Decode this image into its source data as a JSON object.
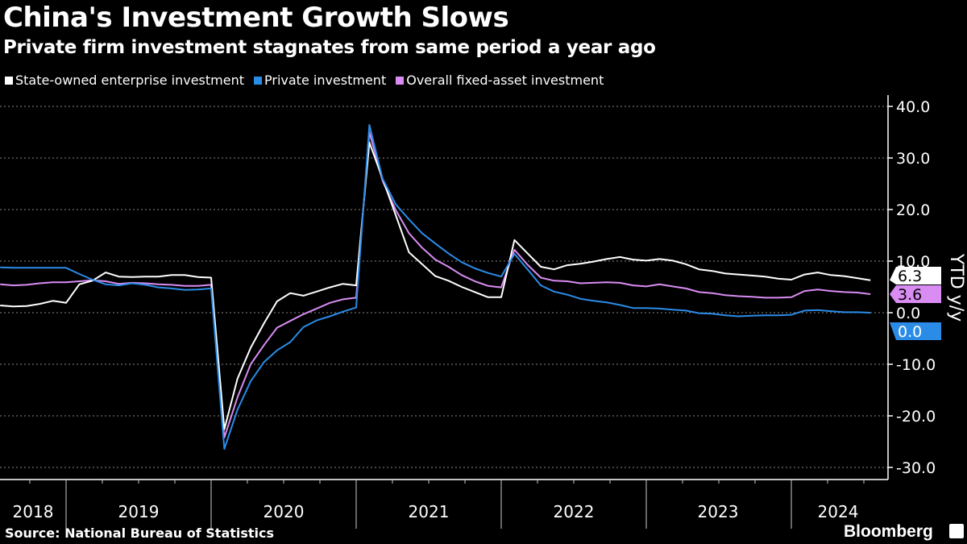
{
  "header": {
    "title": "China's Investment Growth Slows",
    "subtitle": "Private firm investment stagnates from same period a year ago"
  },
  "footer": {
    "source": "Source: National Bureau of Statistics",
    "brand": "Bloomberg"
  },
  "chart_data": {
    "type": "line",
    "title": "China's Investment Growth Slows",
    "subtitle": "Private firm investment stagnates from same period a year ago",
    "ylabel": "YTD y/y",
    "ylim": [
      -30,
      40
    ],
    "yticks": [
      "40.0",
      "30.0",
      "20.0",
      "10.0",
      "0.0",
      "-10.0",
      "-20.0",
      "-30.0"
    ],
    "ytick_values": [
      40,
      30,
      20,
      10,
      0,
      -10,
      -20,
      -30
    ],
    "xticks": [
      "2018",
      "2019",
      "2020",
      "2021",
      "2022",
      "2023",
      "2024"
    ],
    "grid": true,
    "y_axis_side": "right",
    "legend_position": "top-left",
    "x": [
      "2018-07",
      "2018-08",
      "2018-09",
      "2018-10",
      "2018-11",
      "2018-12",
      "2019-02",
      "2019-03",
      "2019-04",
      "2019-05",
      "2019-06",
      "2019-07",
      "2019-08",
      "2019-09",
      "2019-10",
      "2019-11",
      "2019-12",
      "2020-02",
      "2020-03",
      "2020-04",
      "2020-05",
      "2020-06",
      "2020-07",
      "2020-08",
      "2020-09",
      "2020-10",
      "2020-11",
      "2020-12",
      "2021-02",
      "2021-03",
      "2021-04",
      "2021-05",
      "2021-06",
      "2021-07",
      "2021-08",
      "2021-09",
      "2021-10",
      "2021-11",
      "2021-12",
      "2022-02",
      "2022-03",
      "2022-04",
      "2022-05",
      "2022-06",
      "2022-07",
      "2022-08",
      "2022-09",
      "2022-10",
      "2022-11",
      "2022-12",
      "2023-02",
      "2023-03",
      "2023-04",
      "2023-05",
      "2023-06",
      "2023-07",
      "2023-08",
      "2023-09",
      "2023-10",
      "2023-11",
      "2023-12",
      "2024-02",
      "2024-03",
      "2024-04",
      "2024-05",
      "2024-06",
      "2024-07"
    ],
    "series": [
      {
        "name": "Overall fixed-asset investment",
        "color": "#d98cf2",
        "last_label": "3.6",
        "values": [
          5.5,
          5.3,
          5.4,
          5.7,
          5.9,
          5.9,
          6.1,
          6.3,
          6.1,
          5.6,
          5.8,
          5.7,
          5.5,
          5.4,
          5.2,
          5.2,
          5.4,
          -24.2,
          -16.4,
          -10.0,
          -6.3,
          -2.9,
          -1.6,
          -0.3,
          0.8,
          1.9,
          2.6,
          2.9,
          35.0,
          25.6,
          19.9,
          15.4,
          12.6,
          10.3,
          8.9,
          7.3,
          6.1,
          5.2,
          4.9,
          12.2,
          9.3,
          6.8,
          6.2,
          6.1,
          5.7,
          5.8,
          5.9,
          5.8,
          5.3,
          5.1,
          5.5,
          5.1,
          4.7,
          4.0,
          3.8,
          3.4,
          3.2,
          3.1,
          2.9,
          2.9,
          3.0,
          4.2,
          4.5,
          4.2,
          4.0,
          3.9,
          3.6
        ]
      },
      {
        "name": "State-owned enterprise investment",
        "color": "#ffffff",
        "last_label": "6.3",
        "values": [
          1.4,
          1.2,
          1.3,
          1.7,
          2.3,
          1.9,
          5.5,
          6.2,
          7.8,
          7.0,
          6.9,
          7.0,
          7.0,
          7.3,
          7.3,
          6.9,
          6.8,
          -22.6,
          -12.8,
          -6.8,
          -2.1,
          2.2,
          3.8,
          3.3,
          4.1,
          4.9,
          5.6,
          5.3,
          33.0,
          26.0,
          18.9,
          11.7,
          9.4,
          7.1,
          6.2,
          5.0,
          4.0,
          3.0,
          3.0,
          14.1,
          11.5,
          8.9,
          8.4,
          9.2,
          9.5,
          9.9,
          10.4,
          10.8,
          10.3,
          10.1,
          10.4,
          10.1,
          9.4,
          8.4,
          8.1,
          7.6,
          7.4,
          7.2,
          7.0,
          6.6,
          6.4,
          7.4,
          7.8,
          7.3,
          7.1,
          6.7,
          6.3
        ]
      },
      {
        "name": "Private investment",
        "color": "#2b8ce8",
        "last_label": "0.0",
        "values": [
          8.8,
          8.7,
          8.7,
          8.7,
          8.7,
          8.7,
          7.5,
          6.4,
          5.5,
          5.3,
          5.7,
          5.4,
          4.9,
          4.7,
          4.4,
          4.5,
          4.7,
          -26.4,
          -18.8,
          -13.3,
          -9.6,
          -7.3,
          -5.7,
          -2.8,
          -1.5,
          -0.7,
          0.2,
          1.0,
          36.4,
          26.0,
          21.0,
          18.1,
          15.4,
          13.4,
          11.5,
          9.8,
          8.6,
          7.7,
          7.0,
          11.4,
          8.4,
          5.3,
          4.1,
          3.5,
          2.7,
          2.3,
          2.0,
          1.5,
          0.9,
          0.9,
          0.8,
          0.6,
          0.4,
          -0.1,
          -0.2,
          -0.5,
          -0.7,
          -0.6,
          -0.5,
          -0.5,
          -0.4,
          0.4,
          0.5,
          0.3,
          0.1,
          0.1,
          0.0
        ]
      }
    ],
    "legend": [
      {
        "label": "State-owned enterprise investment",
        "color": "#ffffff"
      },
      {
        "label": "Private investment",
        "color": "#2b8ce8"
      },
      {
        "label": "Overall fixed-asset investment",
        "color": "#d98cf2"
      }
    ]
  }
}
